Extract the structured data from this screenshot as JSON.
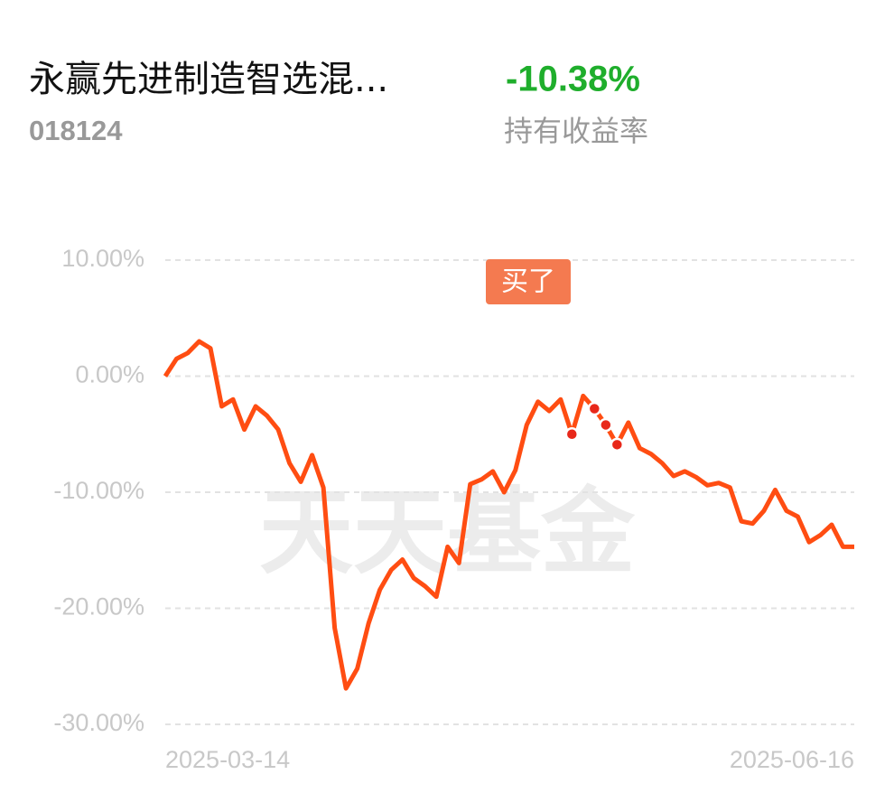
{
  "header": {
    "title": "永赢先进制造智选混...",
    "code": "018124",
    "return": "-10.38%",
    "return_label": "持有收益率"
  },
  "chart_data": {
    "type": "line",
    "color": "#ff4d12",
    "grid": true,
    "watermark": "天天基金",
    "annotation": "买了",
    "categories": [
      "2025-03-14",
      null,
      null,
      null,
      null,
      null,
      null,
      null,
      null,
      null,
      null,
      null,
      null,
      null,
      null,
      null,
      null,
      null,
      null,
      null,
      null,
      null,
      null,
      null,
      null,
      null,
      null,
      null,
      null,
      null,
      null,
      null,
      null,
      null,
      null,
      null,
      null,
      null,
      null,
      null,
      null,
      null,
      null,
      null,
      null,
      null,
      null,
      null,
      null,
      null,
      null,
      null,
      null,
      null,
      null,
      null,
      null,
      null,
      null,
      null,
      null,
      "2025-06-16"
    ],
    "values": [
      0.0,
      1.5,
      2.0,
      3.0,
      2.4,
      -2.6,
      -2.0,
      -4.6,
      -2.6,
      -3.4,
      -4.6,
      -7.5,
      -9.1,
      -6.8,
      -9.6,
      -21.7,
      -26.9,
      -25.2,
      -21.3,
      -18.4,
      -16.7,
      -15.8,
      -17.4,
      -18.1,
      -19.0,
      -14.7,
      -16.1,
      -9.3,
      -8.9,
      -8.2,
      -10.0,
      -8.1,
      -4.2,
      -2.2,
      -3.0,
      -2.0,
      -5.0,
      -1.7,
      -2.8,
      -4.2,
      -5.9,
      -4.0,
      -6.2,
      -6.7,
      -7.5,
      -8.6,
      -8.2,
      -8.7,
      -9.4,
      -9.2,
      -9.6,
      -12.5,
      -12.7,
      -11.6,
      -9.8,
      -11.6,
      -12.1,
      -14.3,
      -13.7,
      -12.8,
      -14.7,
      -14.7
    ],
    "ylim": [
      -30,
      10
    ],
    "yticks": [
      {
        "value": 10,
        "label": "10.00%"
      },
      {
        "value": 0,
        "label": "0.00%"
      },
      {
        "value": -10,
        "label": "-10.00%"
      },
      {
        "value": -20,
        "label": "-20.00%"
      },
      {
        "value": -30,
        "label": "-30.00%"
      }
    ]
  }
}
